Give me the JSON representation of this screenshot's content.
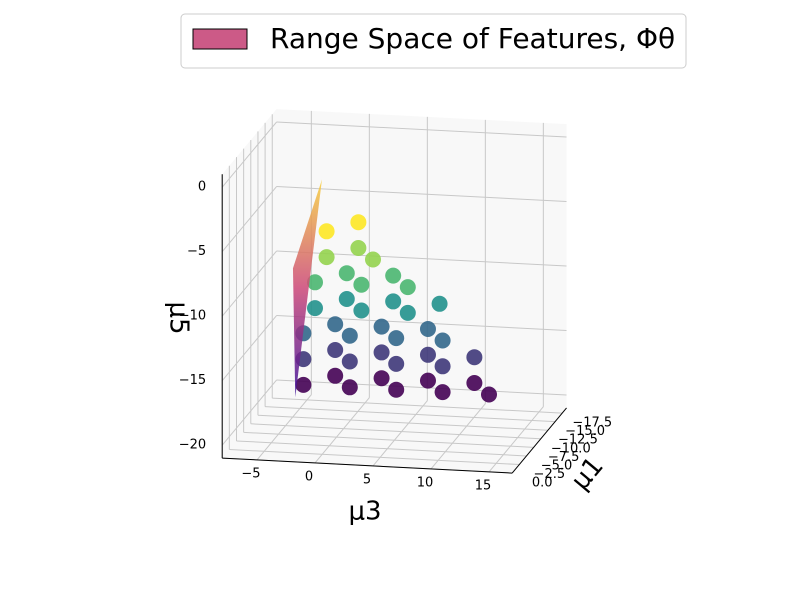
{
  "chart_data": {
    "type": "scatter3d",
    "legend_label": "Range Space of Features, Φθ",
    "legend_color": "#cc5a87",
    "xlabel": "μ3",
    "ylabel": "μ1",
    "zlabel": "μ5",
    "xlim": [
      -8,
      17
    ],
    "ylim": [
      -19,
      0
    ],
    "zlim": [
      -21,
      1
    ],
    "xticks": [
      {
        "value": -5,
        "label": "−5"
      },
      0,
      5,
      10,
      15
    ],
    "yticks": [
      {
        "value": 0,
        "label": "0.0"
      },
      {
        "value": -2.5,
        "label": "−2.5"
      },
      {
        "value": -5,
        "label": "−5.0"
      },
      {
        "value": -7.5,
        "label": "−7.5"
      },
      {
        "value": -10,
        "label": "−10.0"
      },
      {
        "value": -12.5,
        "label": "−12.5"
      },
      {
        "value": -15,
        "label": "−15.0"
      },
      {
        "value": -17.5,
        "label": "−17.5"
      }
    ],
    "zticks": [
      0,
      {
        "value": -5,
        "label": "−5"
      },
      {
        "value": -10,
        "label": "−10"
      },
      {
        "value": -15,
        "label": "−15"
      },
      {
        "value": -20,
        "label": "−20"
      }
    ],
    "grid": true,
    "colormap": "viridis",
    "x": [
      1,
      3,
      1,
      3,
      5,
      0,
      2,
      4,
      6,
      8,
      0,
      2,
      4,
      6,
      8,
      10,
      -1,
      1,
      3,
      5,
      7,
      9,
      11,
      -1,
      1,
      3,
      5,
      7,
      9,
      11,
      13,
      -1,
      1,
      3,
      5,
      7,
      9,
      11,
      13,
      15
    ],
    "y": [
      0,
      -3,
      0,
      -3,
      0,
      0,
      -3,
      0,
      -3,
      0,
      0,
      -3,
      0,
      -3,
      0,
      -3,
      0,
      -3,
      0,
      -3,
      0,
      -3,
      0,
      0,
      -3,
      0,
      -3,
      0,
      -3,
      0,
      -3,
      0,
      -3,
      0,
      -3,
      0,
      -3,
      0,
      -3,
      0
    ],
    "z": [
      -3,
      -3,
      -5,
      -5,
      -5,
      -7,
      -7,
      -7,
      -7,
      -7,
      -9,
      -9,
      -9,
      -9,
      -9,
      -9,
      -11,
      -11,
      -11,
      -11,
      -11,
      -11,
      -11,
      -13,
      -13,
      -13,
      -13,
      -13,
      -13,
      -13,
      -13,
      -15,
      -15,
      -15,
      -15,
      -15,
      -15,
      -15,
      -15,
      -15
    ],
    "surface": {
      "x": [
        -1.7,
        0.6,
        -1.9
      ],
      "y": [
        0,
        0,
        0
      ],
      "z": [
        -16,
        1,
        -6
      ],
      "colors": [
        "#3b0f9a",
        "#cc4778",
        "#f7d03c"
      ]
    }
  }
}
